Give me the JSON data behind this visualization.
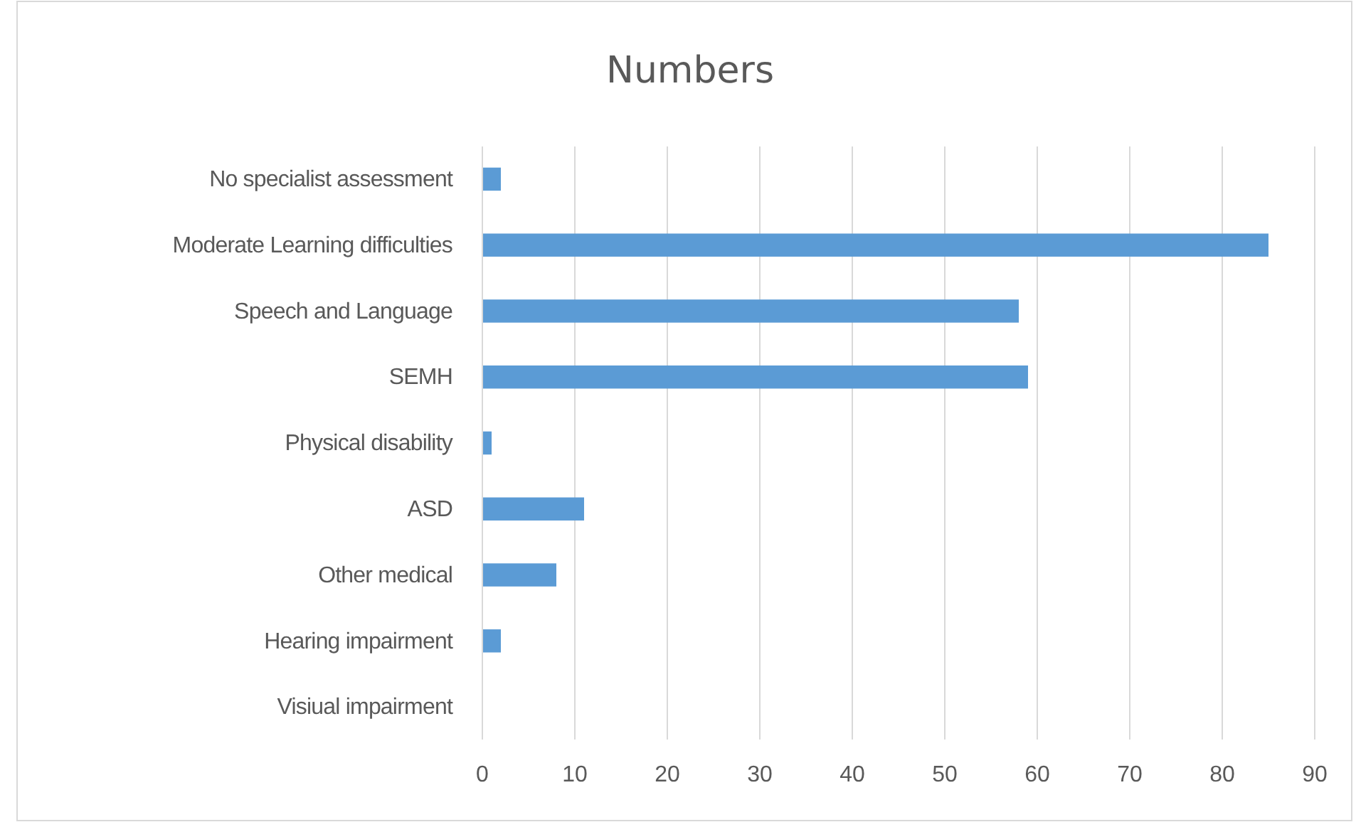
{
  "chart_data": {
    "type": "bar",
    "orientation": "horizontal",
    "title": "Numbers",
    "categories": [
      "No specialist assessment",
      "Moderate Learning difficulties",
      "Speech and Language",
      "SEMH",
      "Physical disability",
      "ASD",
      "Other medical",
      "Hearing impairment",
      "Visiual impairment"
    ],
    "values": [
      2,
      85,
      58,
      59,
      1,
      11,
      8,
      2,
      0
    ],
    "color": "#5b9bd5",
    "xlim": [
      0,
      90
    ],
    "xticks": [
      0,
      10,
      20,
      30,
      40,
      50,
      60,
      70,
      80,
      90
    ],
    "grid": "x"
  }
}
